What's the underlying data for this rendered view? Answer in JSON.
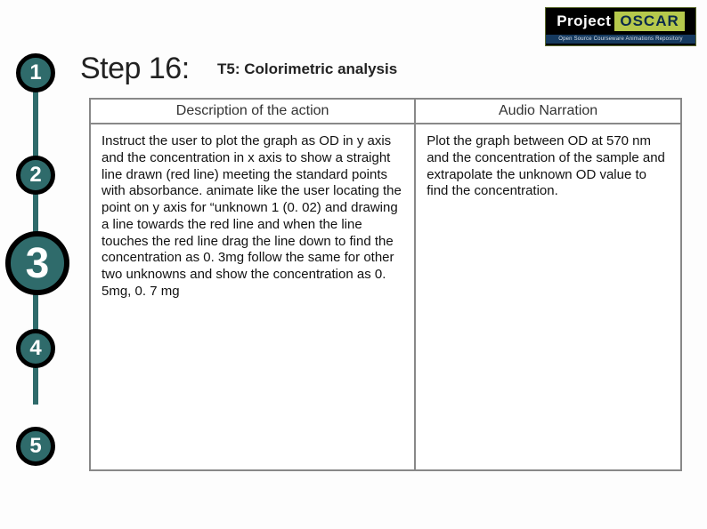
{
  "logo": {
    "project": "Project",
    "oscar": "OSCAR",
    "subtitle": "Open Source Courseware Animations Repository"
  },
  "nav": {
    "line_color": "#2f6b6b",
    "circle_border": "#000000",
    "circle_fill": "#2f6b6b",
    "circle_text": "#ffffff",
    "steps": [
      "1",
      "2",
      "3",
      "4",
      "5"
    ],
    "active_index": 2
  },
  "title": {
    "step_label": "Step 16:",
    "subtitle": "T5: Colorimetric analysis"
  },
  "table": {
    "headers": [
      "Description of the action",
      "Audio Narration"
    ],
    "left_text": "Instruct the user to plot the graph as OD in y axis and the concentration in x axis to show a straight line drawn (red line) meeting the standard points with absorbance. animate like the user locating the point on y axis for “unknown 1 (0. 02) and drawing a line towards the red line and when the line touches the red line drag the line down to find the concentration as 0. 3mg follow the same for other two unknowns and show the concentration as  0. 5mg, 0. 7 mg",
    "right_text": "Plot the graph between OD at 570 nm and the concentration of the sample and extrapolate the unknown OD value to find the concentration."
  },
  "colors": {
    "background": "#ffffff",
    "text": "#111111",
    "table_border": "#888888"
  }
}
